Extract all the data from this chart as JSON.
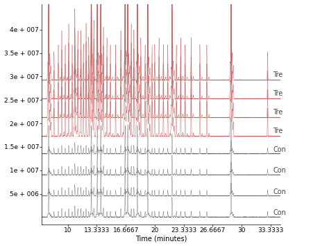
{
  "title": "",
  "xlabel": "Time (minutes)",
  "xlim": [
    7.0,
    34.5
  ],
  "ylim": [
    -1500000.0,
    45500000.0
  ],
  "yticks": [
    5000000.0,
    10000000.0,
    15000000.0,
    20000000.0,
    25000000.0,
    30000000.0,
    35000000.0,
    40000000.0
  ],
  "ytick_labels": [
    "5e + 006",
    "1e + 007",
    "1.5e + 007",
    "2e + 007",
    "2.5e + 007",
    "3e + 007",
    "3.5e + 007",
    "4e + 007"
  ],
  "xticks": [
    10,
    13.3333,
    16.6667,
    20,
    23.3333,
    26.6667,
    30,
    33.3333
  ],
  "trace_labels": [
    "Tre",
    "Tre",
    "Tre",
    "Tre",
    "Con",
    "Con",
    "Con",
    "Con"
  ],
  "tre_color": "#c05050",
  "con_color": "#606060",
  "bg_color": "#ffffff",
  "offsets": [
    0.0,
    4500000.0,
    9000000.0,
    13500000.0,
    17200000.0,
    21200000.0,
    25200000.0,
    29200000.0
  ],
  "tre_peak_scale": 1500000.0,
  "con_peak_scale": 600000.0,
  "peak_positions": [
    7.8,
    8.4,
    8.9,
    9.3,
    9.7,
    10.1,
    10.5,
    10.8,
    11.15,
    11.5,
    11.8,
    12.1,
    12.4,
    12.7,
    13.0,
    13.4,
    13.8,
    14.1,
    14.5,
    14.9,
    15.5,
    16.1,
    16.6,
    16.9,
    17.3,
    17.6,
    18.0,
    18.4,
    18.9,
    19.2,
    19.7,
    20.0,
    20.5,
    21.0,
    21.5,
    22.0,
    22.5,
    23.0,
    23.5,
    24.2,
    25.2,
    26.0,
    28.8,
    33.0
  ],
  "peak_heights_tre": [
    25,
    4,
    5,
    7,
    5,
    8,
    5,
    10,
    7,
    7,
    5,
    8,
    6,
    25,
    8,
    26,
    25,
    7,
    6,
    5,
    5,
    7,
    26,
    25,
    8,
    7,
    25,
    6,
    5,
    22,
    5,
    5,
    6,
    5,
    5,
    18,
    5,
    6,
    5,
    6,
    5,
    5,
    26,
    4
  ],
  "peak_heights_con": [
    10,
    2,
    2,
    3,
    2,
    3,
    2,
    4,
    3,
    3,
    2,
    3,
    2,
    10,
    3,
    10,
    10,
    3,
    2,
    2,
    2,
    3,
    10,
    10,
    3,
    3,
    10,
    2,
    2,
    9,
    2,
    2,
    2,
    2,
    2,
    7,
    2,
    2,
    2,
    2,
    2,
    2,
    12,
    2
  ],
  "label_fontsize": 7,
  "tick_fontsize": 6.5
}
